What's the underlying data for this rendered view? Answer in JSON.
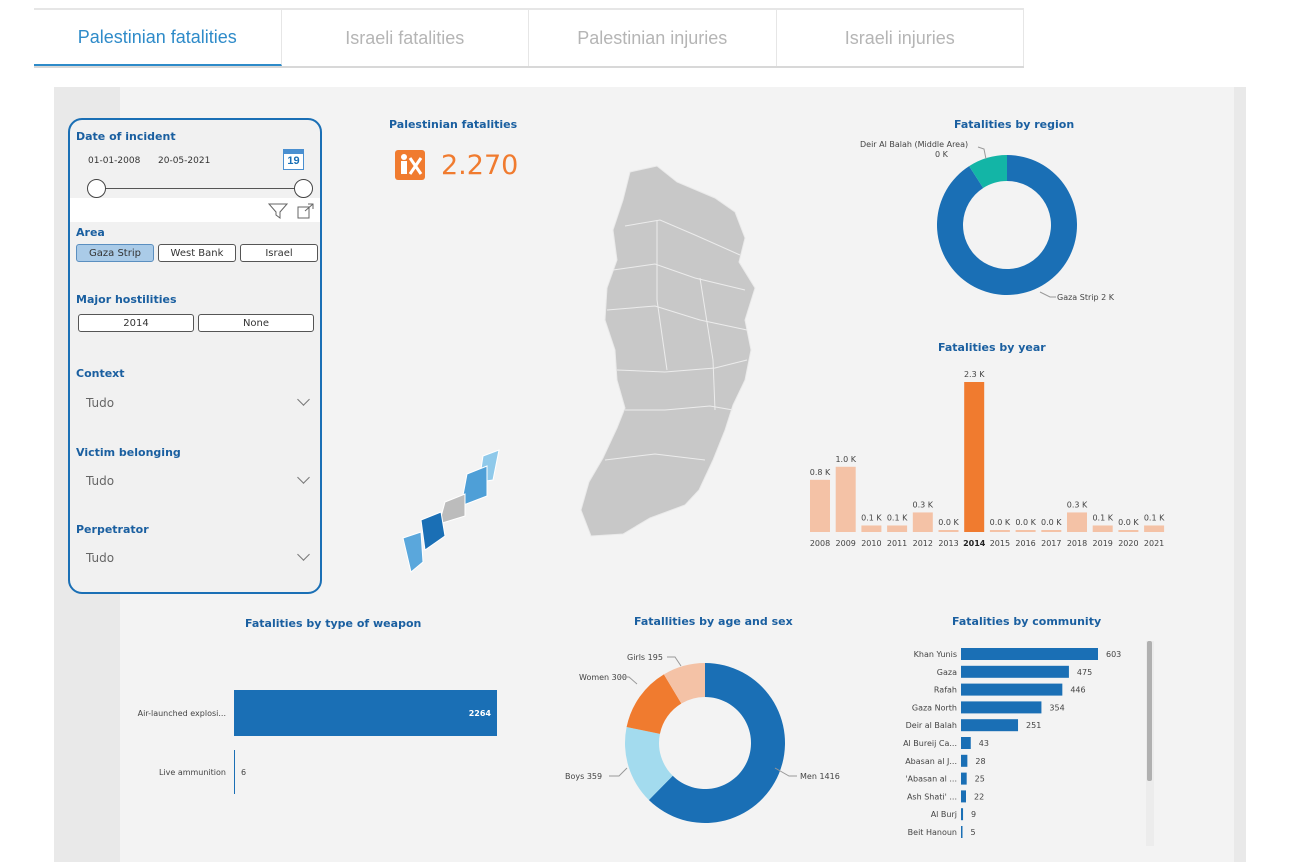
{
  "tabs": [
    {
      "label": "Palestinian fatalities",
      "active": true
    },
    {
      "label": "Israeli fatalities",
      "active": false
    },
    {
      "label": "Palestinian injuries",
      "active": false
    },
    {
      "label": "Israeli injuries",
      "active": false
    }
  ],
  "filters": {
    "date": {
      "title": "Date of incident",
      "start": "01-01-2008",
      "end": "20-05-2021",
      "calendar_day": "19"
    },
    "area": {
      "title": "Area",
      "options": [
        "Gaza Strip",
        "West Bank",
        "Israel"
      ],
      "selected": "Gaza Strip"
    },
    "hostilities": {
      "title": "Major hostilities",
      "options": [
        "2014",
        "None"
      ]
    },
    "context": {
      "title": "Context",
      "value": "Tudo"
    },
    "victim": {
      "title": "Victim belonging",
      "value": "Tudo"
    },
    "perpetrator": {
      "title": "Perpetrator",
      "value": "Tudo"
    }
  },
  "kpi": {
    "title": "Palestinian fatalities",
    "value": "2.270",
    "color": "#f07b2f"
  },
  "colors": {
    "primary": "#1a6fb5",
    "accent": "#f07b2f",
    "light_orange": "#f4c2a6",
    "teal": "#13b5a6",
    "light_blue": "#a3dbee"
  },
  "region": {
    "title": "Fatalities by region",
    "chart_data": {
      "type": "pie",
      "labels": [
        "Gaza Strip",
        "Deir Al Balah (Middle Area)"
      ],
      "values": [
        2.0,
        0.2
      ],
      "data_labels": [
        "Gaza Strip 2 K",
        "0 K"
      ],
      "label_top": "Deir Al Balah (Middle Area)"
    }
  },
  "year": {
    "title": "Fatalities by year",
    "chart_data": {
      "type": "bar",
      "categories": [
        "2008",
        "2009",
        "2010",
        "2011",
        "2012",
        "2013",
        "2014",
        "2015",
        "2016",
        "2017",
        "2018",
        "2019",
        "2020",
        "2021"
      ],
      "values": [
        0.8,
        1.0,
        0.1,
        0.1,
        0.3,
        0.0,
        2.3,
        0.0,
        0.0,
        0.0,
        0.3,
        0.1,
        0.0,
        0.1
      ],
      "labels": [
        "0.8 K",
        "1.0 K",
        "0.1 K",
        "0.1 K",
        "0.3 K",
        "0.0 K",
        "2.3 K",
        "0.0 K",
        "0.0 K",
        "0.0 K",
        "0.3 K",
        "0.1 K",
        "0.0 K",
        "0.1 K"
      ],
      "highlight": "2014"
    }
  },
  "weapon": {
    "title": "Fatalities by type of weapon",
    "chart_data": {
      "type": "bar",
      "categories": [
        "Air-launched explosi...",
        "Live ammunition"
      ],
      "values": [
        2264,
        6
      ]
    }
  },
  "age": {
    "title": "Fatallities by age and sex",
    "chart_data": {
      "type": "pie",
      "labels": [
        "Men",
        "Boys",
        "Women",
        "Girls"
      ],
      "values": [
        1416,
        359,
        300,
        195
      ],
      "data_labels": [
        "Men 1416",
        "Boys 359",
        "Women 300",
        "Girls 195"
      ]
    }
  },
  "community": {
    "title": "Fatalities by community",
    "chart_data": {
      "type": "bar",
      "categories": [
        "Khan Yunis",
        "Gaza",
        "Rafah",
        "Gaza North",
        "Deir al Balah",
        "Al Bureij Ca...",
        "Abasan al J...",
        "'Abasan al ...",
        "Ash Shati' ...",
        "Al Burj",
        "Beit Hanoun"
      ],
      "values": [
        603,
        475,
        446,
        354,
        251,
        43,
        28,
        25,
        22,
        9,
        5
      ]
    }
  }
}
